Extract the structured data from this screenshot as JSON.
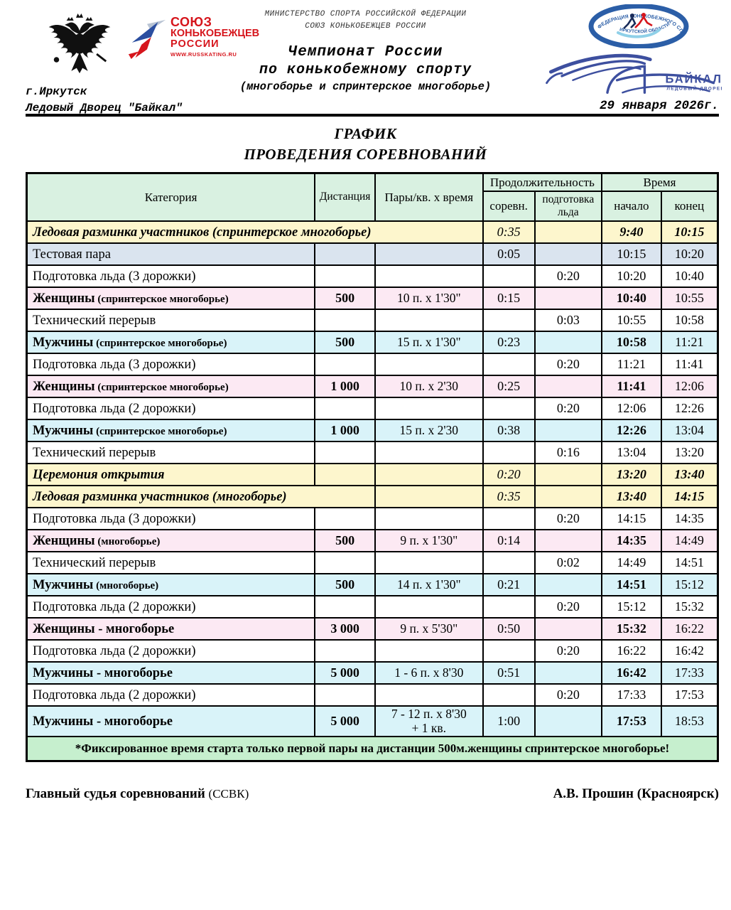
{
  "header": {
    "ministry_line1": "МИНИСТЕРСТВО СПОРТА РОССИЙСКОЙ ФЕДЕРАЦИИ",
    "ministry_line2": "СОЮЗ КОНЬКОБЕЖЦЕВ РОССИИ",
    "title_line1": "Чемпионат России",
    "title_line2": "по конькобежному спорту",
    "title_line3": "(многоборье и спринтерское многоборье)",
    "city": "г.Иркутск",
    "venue": "Ледовый Дворец \"Байкал\"",
    "date": "29 января 2026г.",
    "skr_logo": {
      "line1": "СОЮЗ",
      "line2": "КОНЬКОБЕЖЦЕВ",
      "line3": "РОССИИ",
      "url": "WWW.RUSSKATING.RU"
    },
    "fed_logo": {
      "arc_top": "ФЕДЕРАЦИЯ КОНЬКОБЕЖНОГО СПОРТА",
      "arc_bottom": "ИРКУТСКОЙ ОБЛАСТИ"
    },
    "baikal_logo": {
      "name": "БАЙКАЛ",
      "sub": "ЛЕДОВЫЙ ДВОРЕЦ"
    }
  },
  "doc_title": {
    "line1": "ГРАФИК",
    "line2": "ПРОВЕДЕНИЯ СОРЕВНОВАНИЙ"
  },
  "table": {
    "headers": {
      "category": "Категория",
      "distance": "Дистанция",
      "pairs": "Пары/кв. х время",
      "duration": "Продолжительность",
      "comp": "соревн.",
      "ice": "подготовка льда",
      "time": "Время",
      "start": "начало",
      "end": "конец"
    },
    "rows": [
      {
        "type": "warmup",
        "cat_colspan": 3,
        "category": "Ледовая разминка участников  (спринтерское многоборье)",
        "comp": "0:35",
        "ice": "",
        "start": "9:40",
        "end": "10:15"
      },
      {
        "type": "test",
        "category": "Тестовая пара",
        "distance": "",
        "pairs": "",
        "comp": "0:05",
        "ice": "",
        "start": "10:15",
        "end": "10:20"
      },
      {
        "type": "prep",
        "category": "Подготовка льда (3 дорожки)",
        "distance": "",
        "pairs": "",
        "comp": "",
        "ice": "0:20",
        "start": "10:20",
        "end": "10:40"
      },
      {
        "type": "women",
        "category": "Женщины",
        "category_suffix": "(спринтерское многоборье)",
        "distance": "500",
        "pairs": "10 п. х 1'30\"",
        "comp": "0:15",
        "ice": "",
        "start": "10:40",
        "end": "10:55"
      },
      {
        "type": "prep",
        "category": "Технический перерыв",
        "distance": "",
        "pairs": "",
        "comp": "",
        "ice": "0:03",
        "start": "10:55",
        "end": "10:58"
      },
      {
        "type": "men",
        "category": "Мужчины",
        "category_suffix": "(спринтерское многоборье)",
        "distance": "500",
        "pairs": "15 п. х 1'30\"",
        "comp": "0:23",
        "ice": "",
        "start": "10:58",
        "end": "11:21"
      },
      {
        "type": "prep",
        "category": "Подготовка льда (3 дорожки)",
        "distance": "",
        "pairs": "",
        "comp": "",
        "ice": "0:20",
        "start": "11:21",
        "end": "11:41"
      },
      {
        "type": "women",
        "category": "Женщины",
        "category_suffix": "(спринтерское многоборье)",
        "distance": "1 000",
        "pairs": "10 п. х 2'30",
        "comp": "0:25",
        "ice": "",
        "start": "11:41",
        "end": "12:06"
      },
      {
        "type": "prep",
        "category": "Подготовка льда (2 дорожки)",
        "distance": "",
        "pairs": "",
        "comp": "",
        "ice": "0:20",
        "start": "12:06",
        "end": "12:26"
      },
      {
        "type": "men",
        "category": "Мужчины",
        "category_suffix": "(спринтерское многоборье)",
        "distance": "1 000",
        "pairs": "15 п. х 2'30",
        "comp": "0:38",
        "ice": "",
        "start": "12:26",
        "end": "13:04"
      },
      {
        "type": "prep",
        "category": "Технический перерыв",
        "distance": "",
        "pairs": "",
        "comp": "",
        "ice": "0:16",
        "start": "13:04",
        "end": "13:20"
      },
      {
        "type": "ceremony",
        "category": "Церемония открытия",
        "distance": "",
        "pairs": "",
        "comp": "0:20",
        "ice": "",
        "start": "13:20",
        "end": "13:40"
      },
      {
        "type": "warmup",
        "cat_colspan": 2,
        "category": "Ледовая разминка участников (многоборье)",
        "pairs": "",
        "comp": "0:35",
        "ice": "",
        "start": "13:40",
        "end": "14:15"
      },
      {
        "type": "prep",
        "category": "Подготовка льда (3 дорожки)",
        "distance": "",
        "pairs": "",
        "comp": "",
        "ice": "0:20",
        "start": "14:15",
        "end": "14:35"
      },
      {
        "type": "women",
        "category": "Женщины",
        "category_suffix": "(многоборье)",
        "distance": "500",
        "pairs": "9 п. х 1'30\"",
        "comp": "0:14",
        "ice": "",
        "start": "14:35",
        "end": "14:49"
      },
      {
        "type": "prep",
        "category": "Технический перерыв",
        "distance": "",
        "pairs": "",
        "comp": "",
        "ice": "0:02",
        "start": "14:49",
        "end": "14:51"
      },
      {
        "type": "men",
        "category": "Мужчины",
        "category_suffix": "(многоборье)",
        "distance": "500",
        "pairs": "14 п. х 1'30\"",
        "comp": "0:21",
        "ice": "",
        "start": "14:51",
        "end": "15:12"
      },
      {
        "type": "prep",
        "category": "Подготовка льда (2 дорожки)",
        "distance": "",
        "pairs": "",
        "comp": "",
        "ice": "0:20",
        "start": "15:12",
        "end": "15:32"
      },
      {
        "type": "women",
        "category": "Женщины - многоборье",
        "distance": "3 000",
        "pairs": "9 п. х 5'30\"",
        "comp": "0:50",
        "ice": "",
        "start": "15:32",
        "end": "16:22"
      },
      {
        "type": "prep",
        "category": "Подготовка льда (2 дорожки)",
        "distance": "",
        "pairs": "",
        "comp": "",
        "ice": "0:20",
        "start": "16:22",
        "end": "16:42"
      },
      {
        "type": "men",
        "category": "Мужчины - многоборье",
        "distance": "5 000",
        "pairs": "1 - 6 п. х 8'30",
        "comp": "0:51",
        "ice": "",
        "start": "16:42",
        "end": "17:33"
      },
      {
        "type": "prep",
        "category": "Подготовка льда (2 дорожки)",
        "distance": "",
        "pairs": "",
        "comp": "",
        "ice": "0:20",
        "start": "17:33",
        "end": "17:53"
      },
      {
        "type": "men",
        "category": "Мужчины - многоборье",
        "distance": "5 000",
        "pairs": "7 - 12 п. х 8'30\n+ 1 кв.",
        "comp": "1:00",
        "ice": "",
        "start": "17:53",
        "end": "18:53"
      }
    ],
    "note": "*Фиксированное время старта только первой пары на дистанции 500м.женщины спринтерское многоборье!"
  },
  "footer": {
    "left": "Главный судья соревнований",
    "left_credential": "(ССВК)",
    "right": "А.В. Прошин (Красноярск)"
  },
  "colors": {
    "row-yellow": "#fdf6cd",
    "row-pink": "#fce9f3",
    "row-cyan": "#d9f3f9",
    "row-bluegray": "#dae4ef",
    "header-green": "#d9f1e1",
    "note-green": "#c6efce",
    "logo-red": "#d6151c",
    "logo-blue": "#2b4ea0",
    "baikal-blue": "#3d4f9f"
  }
}
